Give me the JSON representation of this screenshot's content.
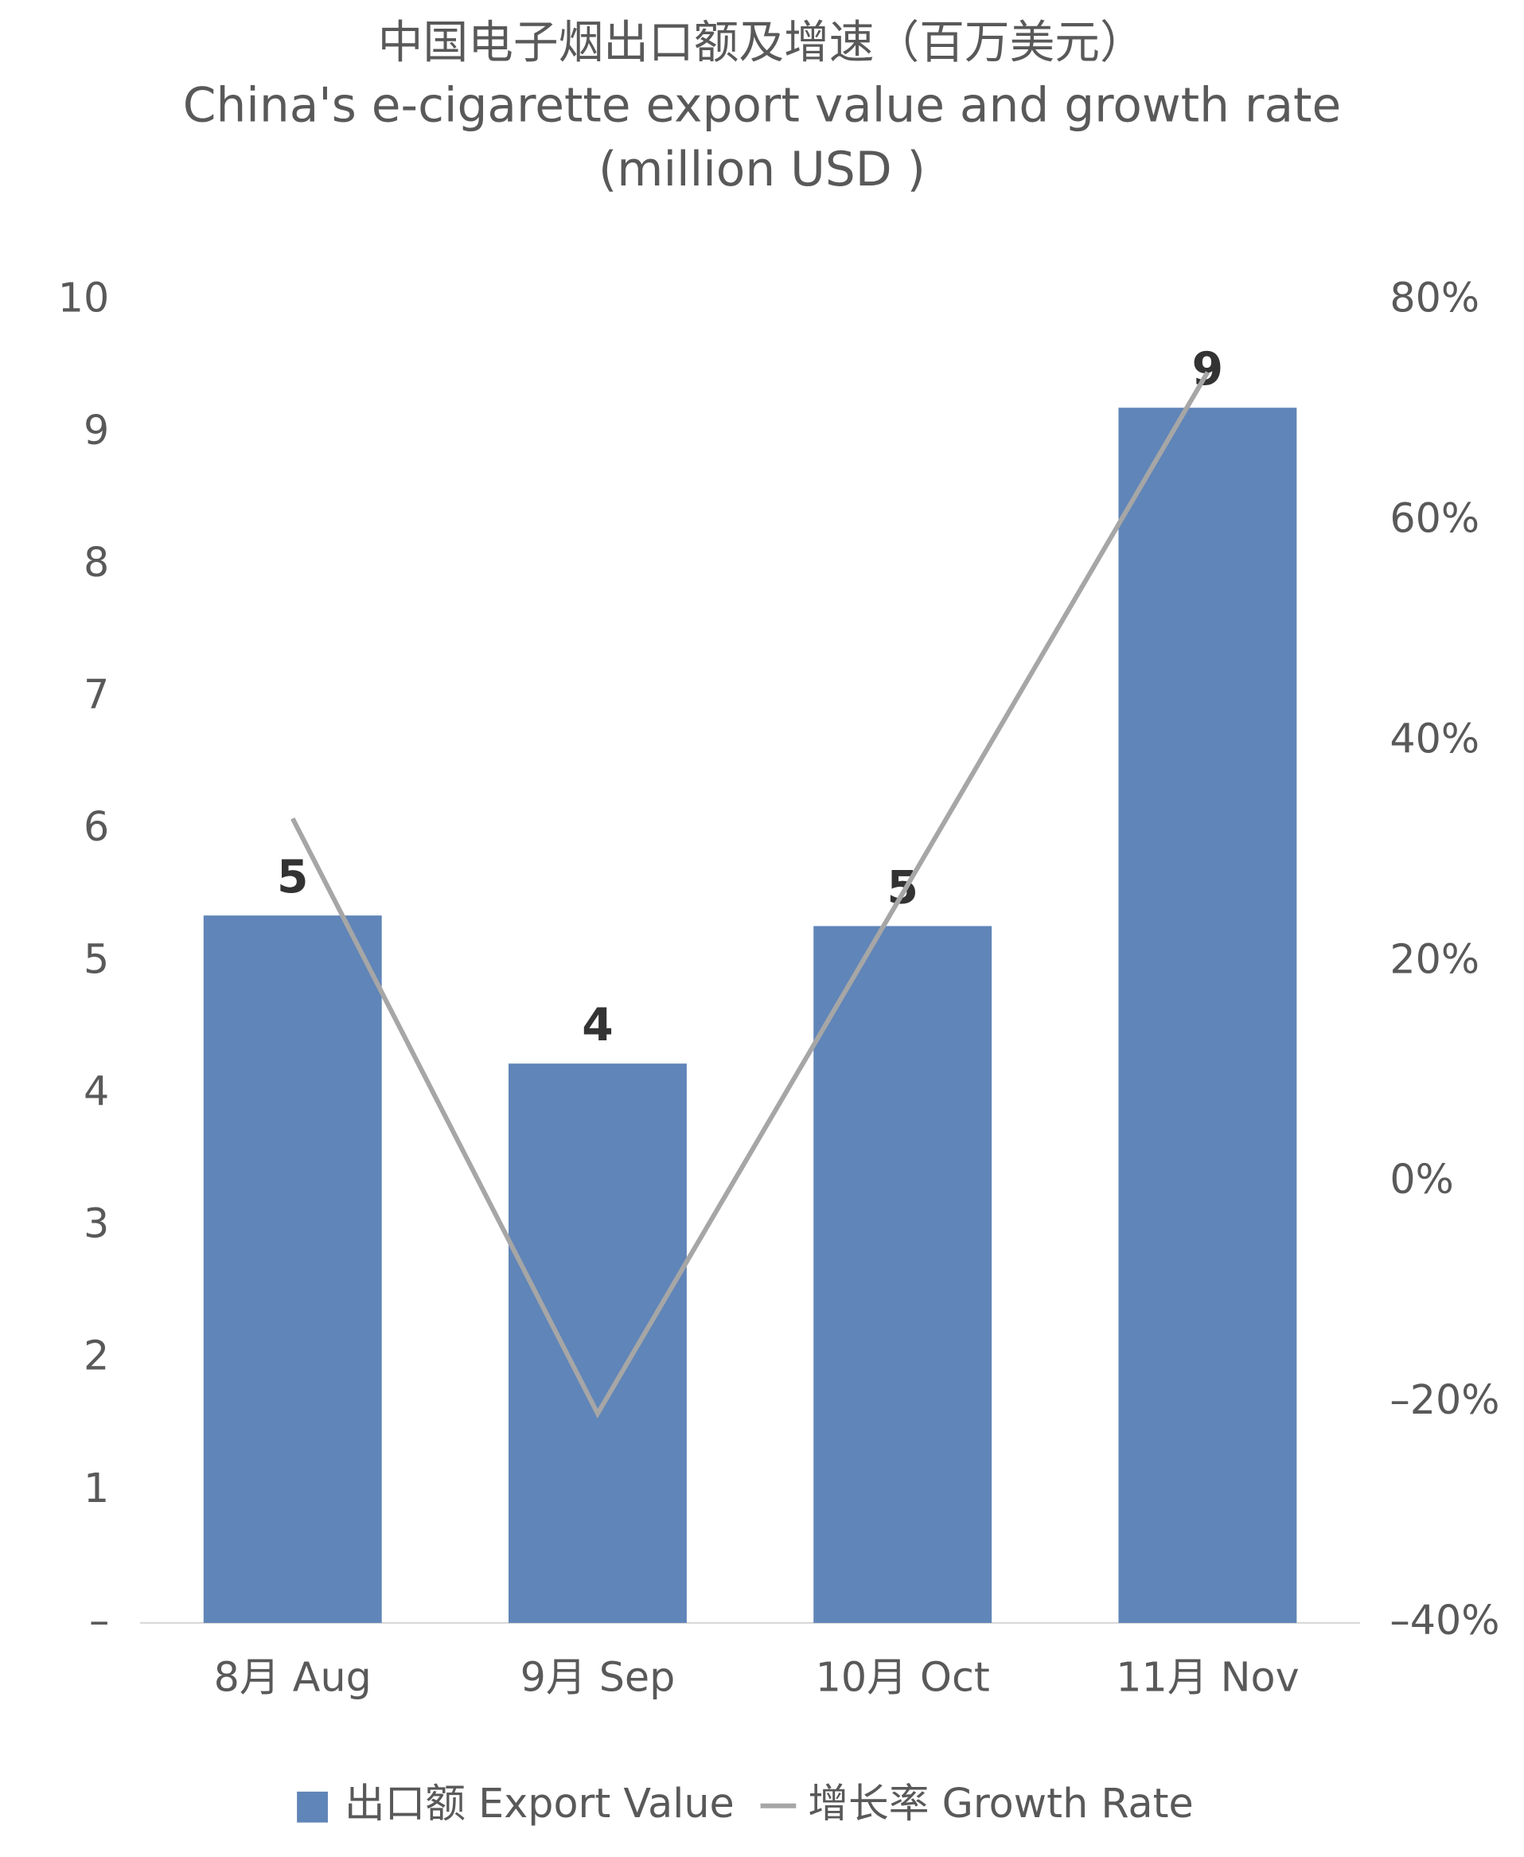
{
  "chart_data": {
    "type": "bar_line",
    "title": "中国电子烟出口额及增速（百万美元）",
    "subtitle": "China's e-cigarette export value and growth rate (million USD )",
    "categories": [
      "8月 Aug",
      "9月 Sep",
      "10月 Oct",
      "11月 Nov"
    ],
    "series": [
      {
        "name": "出口额 Export Value",
        "type": "bar",
        "color": "#6085b8",
        "values": [
          5.35,
          4.23,
          5.27,
          9.19
        ],
        "value_labels": [
          "5",
          "4",
          "5",
          "9"
        ]
      },
      {
        "name": "增长率 Growth Rate",
        "type": "line",
        "axis": "y2",
        "color": "#a6a6a6",
        "values": [
          33.0,
          -21.0,
          26.2,
          73.5
        ]
      }
    ],
    "ylim": [
      0,
      10
    ],
    "yticks": [
      {
        "value": 0,
        "label": "–"
      },
      1,
      2,
      3,
      4,
      5,
      6,
      7,
      8,
      9,
      10
    ],
    "y2lim": [
      -40,
      80
    ],
    "y2ticks": [
      {
        "value": -40,
        "label": "–40%"
      },
      {
        "value": -20,
        "label": "–20%"
      },
      {
        "value": 0,
        "label": "0%"
      },
      {
        "value": 20,
        "label": "20%"
      },
      {
        "value": 40,
        "label": "40%"
      },
      {
        "value": 60,
        "label": "60%"
      },
      {
        "value": 80,
        "label": "80%"
      }
    ],
    "grid": false,
    "legend": "bottom"
  }
}
